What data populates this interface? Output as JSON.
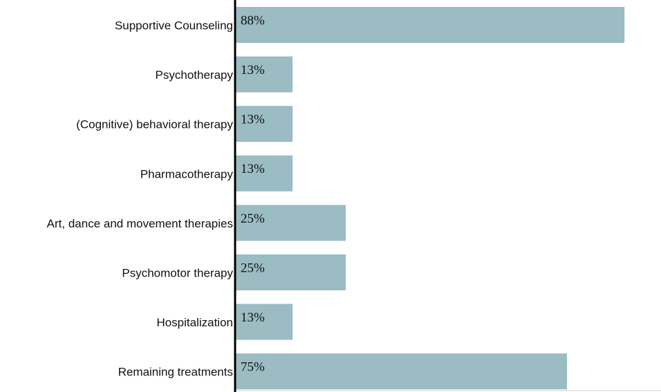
{
  "chart_data": {
    "type": "bar",
    "orientation": "horizontal",
    "categories": [
      "Supportive Counseling",
      "Psychotherapy",
      "(Cognitive) behavioral therapy",
      "Pharmacotherapy",
      "Art, dance and movement therapies",
      "Psychomotor therapy",
      "Hospitalization",
      "Remaining treatments"
    ],
    "values": [
      88,
      13,
      13,
      13,
      25,
      25,
      13,
      75
    ],
    "value_labels": [
      "88%",
      "13%",
      "13%",
      "13%",
      "25%",
      "25%",
      "13%",
      "75%"
    ],
    "color": "#9bbcc3"
  }
}
